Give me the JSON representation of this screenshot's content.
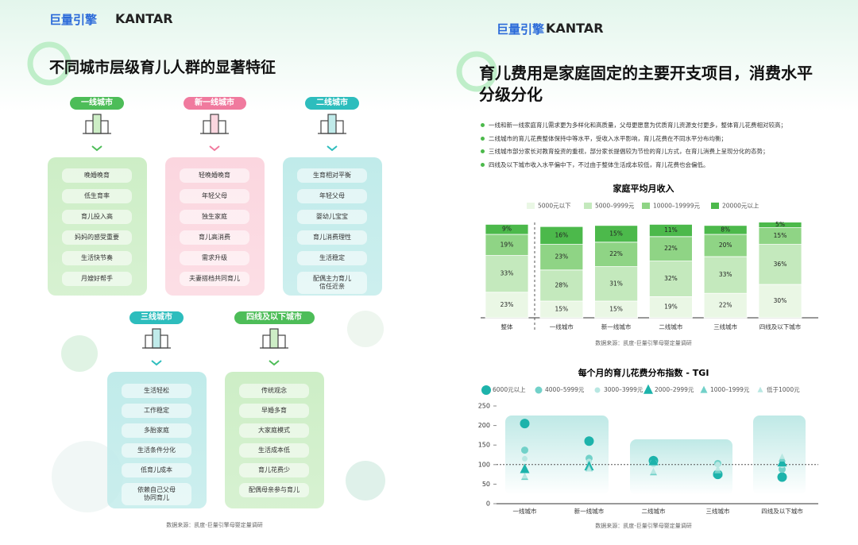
{
  "left": {
    "logo": "巨量引擎",
    "brand": "KANTAR",
    "title": "不同城市层级育儿人群的显著特征",
    "groups": [
      {
        "name": "一线城市",
        "items": [
          "晚婚晚育",
          "低生育率",
          "育儿投入高",
          "妈妈的感受重要",
          "生活快节奏",
          "月嫂好帮手"
        ]
      },
      {
        "name": "新一线城市",
        "items": [
          "轻晚婚晚育",
          "年轻父母",
          "独生家庭",
          "育儿高消费",
          "需求升级",
          "夫妻搭档共同育儿"
        ]
      },
      {
        "name": "二线城市",
        "items": [
          "生育相对平衡",
          "年轻父母",
          "婴幼儿宝宝",
          "育儿消费理性",
          "生活稳定",
          "配偶主力育儿\n信任近亲"
        ]
      },
      {
        "name": "三线城市",
        "items": [
          "生活轻松",
          "工作稳定",
          "多胎家庭",
          "生活条件分化",
          "低育儿成本",
          "依赖自己父母\n协同育儿"
        ]
      },
      {
        "name": "四线及以下城市",
        "items": [
          "传统观念",
          "早婚多育",
          "大家庭模式",
          "生活成本低",
          "育儿花费少",
          "配偶母亲参与育儿"
        ]
      }
    ],
    "source": "数据来源：凯度-巨量引擎母婴定量调研"
  },
  "right": {
    "logo": "巨量引擎",
    "brand": "KANTAR",
    "title": "育儿费用是家庭固定的主要开支项目，消费水平分级分化",
    "bullets": [
      "一线和新一线家庭育儿需求更为多样化和高质量，父母更愿意为优质育儿资源支付更多，整体育儿花费相对较高；",
      "二线城市的育儿花费整体保持中等水平，受收入水平影响，育儿花费在不同水平分布均衡；",
      "三线城市部分家长对教育投资的重视，部分家长提倡较为节俭的育儿方式，在育儿消费上呈现分化的态势；",
      "四线及以下城市收入水平偏中下，不过由于整体生活成本较低，育儿花费也会偏低。"
    ],
    "source_1": "数据来源：凯度-巨量引擎母婴定量调研",
    "source_2": "数据来源：凯度-巨量引擎母婴定量调研"
  },
  "chart_data": [
    {
      "type": "bar",
      "stacked": true,
      "title": "家庭平均月收入",
      "categories": [
        "整体",
        "一线城市",
        "新一线城市",
        "二线城市",
        "三线城市",
        "四线及以下城市"
      ],
      "series": [
        {
          "name": "5000元以下",
          "color": "#eaf7e5",
          "values": [
            23,
            15,
            15,
            19,
            22,
            30
          ],
          "value_labels": [
            "23%",
            "15%",
            "15%",
            "19%",
            "22%",
            "30%"
          ]
        },
        {
          "name": "5000–9999元",
          "color": "#c4e9bd",
          "values": [
            33,
            28,
            31,
            32,
            33,
            36
          ],
          "value_labels": [
            "33%",
            "28%",
            "31%",
            "32%",
            "33%",
            "36%"
          ]
        },
        {
          "name": "10000–19999元",
          "color": "#8fd485",
          "values": [
            19,
            23,
            22,
            22,
            20,
            15
          ],
          "value_labels": [
            "19%",
            "23%",
            "22%",
            "22%",
            "20%",
            "15%"
          ]
        },
        {
          "name": "20000元以上",
          "color": "#4cb94b",
          "values": [
            9,
            16,
            15,
            11,
            8,
            5
          ],
          "value_labels": [
            "9%",
            "16%",
            "15%",
            "11%",
            "8%",
            "5%"
          ]
        }
      ]
    },
    {
      "type": "scatter",
      "title": "每个月的育儿花费分布指数 - TGI",
      "categories": [
        "一线城市",
        "新一线城市",
        "二线城市",
        "三线城市",
        "四线及以下城市"
      ],
      "ylim": [
        0,
        250
      ],
      "yticks": [
        0,
        50,
        100,
        150,
        200,
        250
      ],
      "reference_line": 100,
      "series": [
        {
          "name": "6000元以上",
          "marker": "circle",
          "color": "#1db3ab",
          "values": [
            205,
            160,
            110,
            75,
            68
          ]
        },
        {
          "name": "4000–5999元",
          "marker": "circle",
          "color": "#72d1c9",
          "values": [
            137,
            116,
            105,
            103,
            88
          ]
        },
        {
          "name": "3000–3999元",
          "marker": "circle",
          "color": "#b8e7e2",
          "values": [
            115,
            108,
            100,
            100,
            98
          ]
        },
        {
          "name": "2000–2999元",
          "marker": "triangle",
          "color": "#1db3ab",
          "values": [
            88,
            95,
            108,
            80,
            105
          ]
        },
        {
          "name": "1000–1999元",
          "marker": "triangle",
          "color": "#72d1c9",
          "values": [
            68,
            90,
            80,
            85,
            115
          ]
        },
        {
          "name": "低于1000元",
          "marker": "triangle",
          "color": "#b8e7e2",
          "values": [
            70,
            88,
            82,
            90,
            120
          ]
        }
      ]
    }
  ]
}
